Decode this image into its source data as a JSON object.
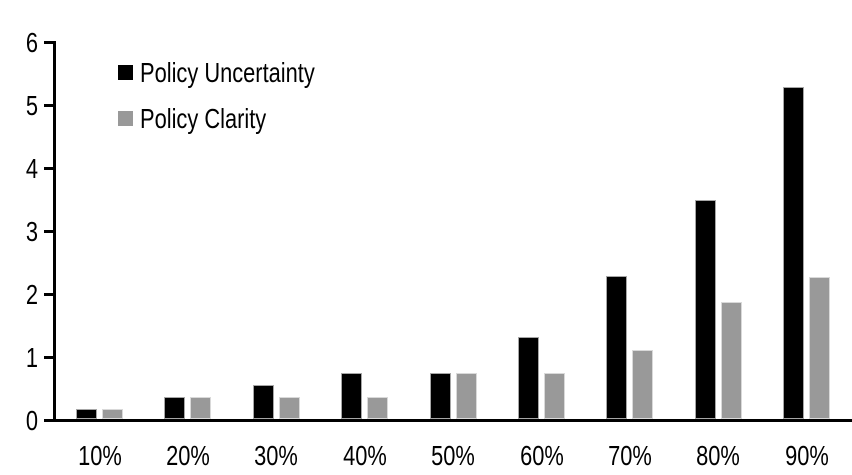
{
  "chart_data": {
    "type": "bar",
    "title": "",
    "xlabel": "",
    "ylabel": "",
    "categories": [
      "10%",
      "20%",
      "30%",
      "40%",
      "50%",
      "60%",
      "70%",
      "80%",
      "90%"
    ],
    "series": [
      {
        "name": "Policy Uncertainty",
        "color": "#000000",
        "border_color": "#a6a6a6",
        "values": [
          0.18,
          0.38,
          0.56,
          0.76,
          0.76,
          1.32,
          2.3,
          3.5,
          5.3
        ]
      },
      {
        "name": "Policy Clarity",
        "color": "#999999",
        "border_color": "#d9d9d9",
        "values": [
          0.18,
          0.38,
          0.38,
          0.38,
          0.76,
          0.76,
          1.12,
          1.88,
          2.28
        ]
      }
    ],
    "ylim": [
      0,
      6
    ],
    "yticks": [
      "0",
      "1",
      "2",
      "3",
      "4",
      "5",
      "6"
    ],
    "grid": false,
    "legend_position": "upper-left-inside",
    "axis_color": "#000000",
    "background_color": "#ffffff"
  }
}
